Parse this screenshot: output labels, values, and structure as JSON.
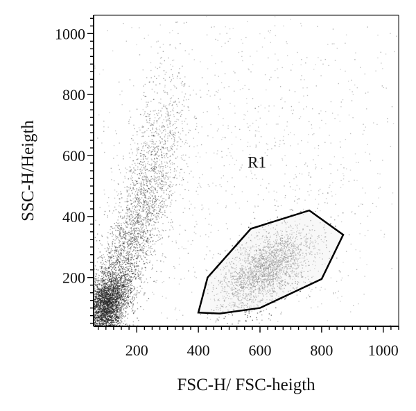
{
  "chart_data": {
    "type": "scatter",
    "title": "",
    "xlabel": "FSC-H/ FSC-heigth",
    "ylabel": "SSC-H/Heigth",
    "xlim": [
      60,
      1050
    ],
    "ylim": [
      40,
      1060
    ],
    "x_ticks": [
      200,
      400,
      600,
      800,
      1000
    ],
    "y_ticks": [
      200,
      400,
      600,
      800,
      1000
    ],
    "grid": false,
    "point_color": "#222222",
    "gate": {
      "label": "R1",
      "label_position": [
        590,
        560
      ],
      "fill": "#f2f2f2",
      "stroke": "#000000",
      "vertices": [
        [
          400,
          85
        ],
        [
          470,
          82
        ],
        [
          600,
          100
        ],
        [
          800,
          195
        ],
        [
          870,
          340
        ],
        [
          760,
          420
        ],
        [
          570,
          360
        ],
        [
          430,
          200
        ]
      ]
    },
    "populations": [
      {
        "name": "",
        "count": 2600,
        "center": [
          100,
          110
        ],
        "spread": [
          32,
          55
        ],
        "corr": 0.3,
        "opacity": 0.75
      },
      {
        "name": "",
        "count": 2200,
        "center": [
          160,
          260
        ],
        "spread": [
          65,
          160
        ],
        "corr": 0.75,
        "opacity": 0.55
      },
      {
        "name": "",
        "count": 900,
        "center": [
          250,
          560
        ],
        "spread": [
          55,
          170
        ],
        "corr": 0.6,
        "opacity": 0.45
      },
      {
        "name": "",
        "count": 2600,
        "center": [
          620,
          230
        ],
        "spread": [
          75,
          65
        ],
        "corr": 0.55,
        "opacity": 0.65
      },
      {
        "name": "",
        "count": 1300,
        "center": [
          555,
          545
        ],
        "spread": [
          300,
          330
        ],
        "corr": 0.0,
        "opacity": 0.35
      }
    ]
  }
}
